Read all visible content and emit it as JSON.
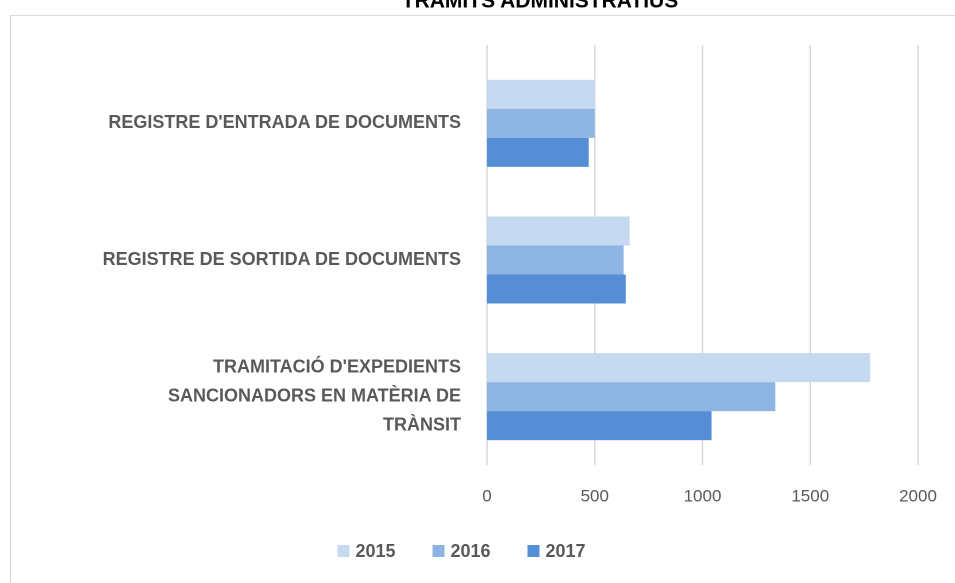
{
  "chart_data": {
    "type": "barh",
    "title": "TRÀMITS ADMINISTRATIUS",
    "categories": [
      "REGISTRE D'ENTRADA DE DOCUMENTS",
      "REGISTRE DE SORTIDA DE DOCUMENTS",
      "TRAMITACIÓ D'EXPEDIENTS SANCIONADORS EN MATÈRIA DE TRÀNSIT"
    ],
    "series": [
      {
        "name": "2015",
        "color": "#c5d9f1",
        "values": [
          500,
          662,
          1778
        ]
      },
      {
        "name": "2016",
        "color": "#8db4e2",
        "values": [
          500,
          634,
          1338
        ]
      },
      {
        "name": "2017",
        "color": "#558ed5",
        "values": [
          472,
          644,
          1042
        ]
      }
    ],
    "xlim": [
      0,
      2000
    ],
    "xticks": [
      0,
      500,
      1000,
      1500,
      2000
    ],
    "grid": true,
    "legend": "bottom"
  }
}
